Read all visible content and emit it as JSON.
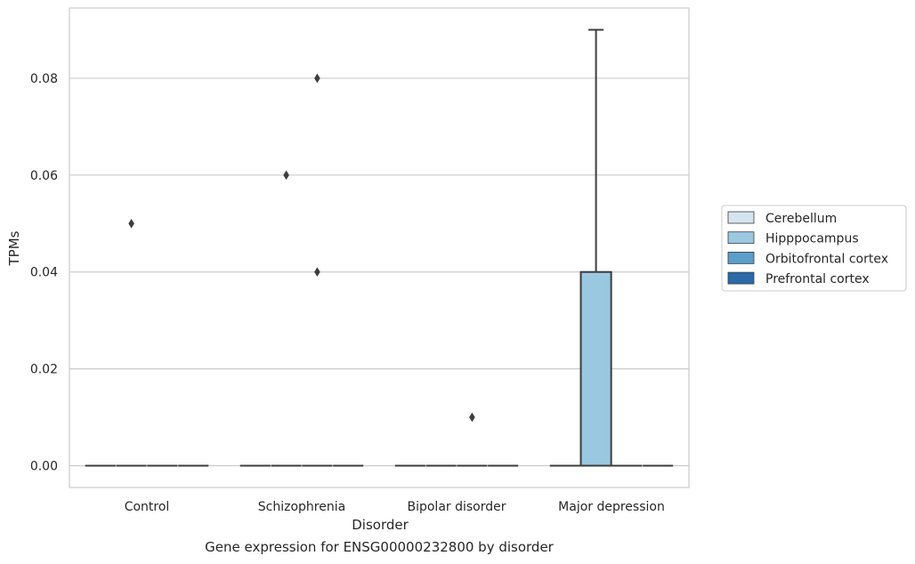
{
  "caption": "Gene expression for ENSG00000232800 by disorder",
  "chart_data": {
    "type": "box",
    "xlabel": "Disorder",
    "ylabel": "TPMs",
    "categories": [
      "Control",
      "Schizophrenia",
      "Bipolar disorder",
      "Major depression"
    ],
    "hue_order": [
      "Cerebellum",
      "Hipppocampus",
      "Orbitofrontal cortex",
      "Prefrontal cortex"
    ],
    "hue_colors": [
      "#d6e4f0",
      "#9ac8e0",
      "#5a9ec9",
      "#2a6aa8"
    ],
    "ylim": [
      -0.0045,
      0.0945
    ],
    "yticks": [
      0.0,
      0.02,
      0.04,
      0.06,
      0.08
    ],
    "ytick_labels": [
      "0.00",
      "0.02",
      "0.04",
      "0.06",
      "0.08"
    ],
    "grid": true,
    "legend_position": "right",
    "boxes": [
      {
        "category": "Control",
        "hue": "Cerebellum",
        "q1": 0,
        "median": 0,
        "q3": 0,
        "whislo": 0,
        "whishi": 0,
        "fliers": []
      },
      {
        "category": "Control",
        "hue": "Hipppocampus",
        "q1": 0,
        "median": 0,
        "q3": 0,
        "whislo": 0,
        "whishi": 0,
        "fliers": [
          0.05
        ]
      },
      {
        "category": "Control",
        "hue": "Orbitofrontal cortex",
        "q1": 0,
        "median": 0,
        "q3": 0,
        "whislo": 0,
        "whishi": 0,
        "fliers": []
      },
      {
        "category": "Control",
        "hue": "Prefrontal cortex",
        "q1": 0,
        "median": 0,
        "q3": 0,
        "whislo": 0,
        "whishi": 0,
        "fliers": []
      },
      {
        "category": "Schizophrenia",
        "hue": "Cerebellum",
        "q1": 0,
        "median": 0,
        "q3": 0,
        "whislo": 0,
        "whishi": 0,
        "fliers": []
      },
      {
        "category": "Schizophrenia",
        "hue": "Hipppocampus",
        "q1": 0,
        "median": 0,
        "q3": 0,
        "whislo": 0,
        "whishi": 0,
        "fliers": [
          0.06
        ]
      },
      {
        "category": "Schizophrenia",
        "hue": "Orbitofrontal cortex",
        "q1": 0,
        "median": 0,
        "q3": 0,
        "whislo": 0,
        "whishi": 0,
        "fliers": [
          0.08,
          0.04
        ]
      },
      {
        "category": "Schizophrenia",
        "hue": "Prefrontal cortex",
        "q1": 0,
        "median": 0,
        "q3": 0,
        "whislo": 0,
        "whishi": 0,
        "fliers": []
      },
      {
        "category": "Bipolar disorder",
        "hue": "Cerebellum",
        "q1": 0,
        "median": 0,
        "q3": 0,
        "whislo": 0,
        "whishi": 0,
        "fliers": []
      },
      {
        "category": "Bipolar disorder",
        "hue": "Hipppocampus",
        "q1": 0,
        "median": 0,
        "q3": 0,
        "whislo": 0,
        "whishi": 0,
        "fliers": []
      },
      {
        "category": "Bipolar disorder",
        "hue": "Orbitofrontal cortex",
        "q1": 0,
        "median": 0,
        "q3": 0,
        "whislo": 0,
        "whishi": 0,
        "fliers": [
          0.01
        ]
      },
      {
        "category": "Bipolar disorder",
        "hue": "Prefrontal cortex",
        "q1": 0,
        "median": 0,
        "q3": 0,
        "whislo": 0,
        "whishi": 0,
        "fliers": []
      },
      {
        "category": "Major depression",
        "hue": "Cerebellum",
        "q1": 0,
        "median": 0,
        "q3": 0,
        "whislo": 0,
        "whishi": 0,
        "fliers": []
      },
      {
        "category": "Major depression",
        "hue": "Hipppocampus",
        "q1": 0,
        "median": 0,
        "q3": 0.04,
        "whislo": 0,
        "whishi": 0.09,
        "fliers": []
      },
      {
        "category": "Major depression",
        "hue": "Orbitofrontal cortex",
        "q1": 0,
        "median": 0,
        "q3": 0,
        "whislo": 0,
        "whishi": 0,
        "fliers": []
      },
      {
        "category": "Major depression",
        "hue": "Prefrontal cortex",
        "q1": 0,
        "median": 0,
        "q3": 0,
        "whislo": 0,
        "whishi": 0,
        "fliers": []
      }
    ]
  }
}
